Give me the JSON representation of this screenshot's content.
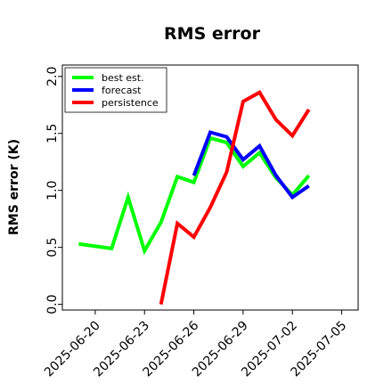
{
  "chart_data": {
    "type": "line",
    "title": "RMS error",
    "xlabel": "",
    "ylabel": "RMS error (K)",
    "xlim": [
      "2025-06-18",
      "2025-07-06"
    ],
    "ylim": [
      -0.05,
      2.1
    ],
    "yticks": [
      "0.0",
      "0.5",
      "1.0",
      "1.5",
      "2.0"
    ],
    "xticks": [
      {
        "date": "2025-06-20",
        "label": "2025-06-20",
        "color": "#000000"
      },
      {
        "date": "2025-06-23",
        "label": "2025-06-23",
        "color": "#000000"
      },
      {
        "date": "2025-06-26",
        "label": "2025-06-26",
        "color": "#2a8c2a"
      },
      {
        "date": "2025-06-29",
        "label": "2025-06-29",
        "color": "#000000"
      },
      {
        "date": "2025-07-02",
        "label": "2025-07-02",
        "color": "#000000"
      },
      {
        "date": "2025-07-05",
        "label": "2025-07-05",
        "color": "#000000"
      }
    ],
    "legend": {
      "position": "top-left"
    },
    "series": [
      {
        "name": "best est.",
        "color": "#00ff00",
        "x": [
          "2025-06-19",
          "2025-06-20",
          "2025-06-21",
          "2025-06-22",
          "2025-06-23",
          "2025-06-24",
          "2025-06-25",
          "2025-06-26",
          "2025-06-27",
          "2025-06-28",
          "2025-06-29",
          "2025-06-30",
          "2025-07-01",
          "2025-07-02",
          "2025-07-03"
        ],
        "y": [
          0.53,
          0.51,
          0.49,
          0.94,
          0.47,
          0.72,
          1.12,
          1.07,
          1.46,
          1.42,
          1.21,
          1.33,
          1.11,
          0.96,
          1.13
        ]
      },
      {
        "name": "forecast",
        "color": "#0000ff",
        "x": [
          "2025-06-26",
          "2025-06-27",
          "2025-06-28",
          "2025-06-29",
          "2025-06-30",
          "2025-07-01",
          "2025-07-02",
          "2025-07-03"
        ],
        "y": [
          1.13,
          1.51,
          1.47,
          1.27,
          1.39,
          1.13,
          0.94,
          1.04
        ]
      },
      {
        "name": "persistence",
        "color": "#ff0000",
        "x": [
          "2025-06-24",
          "2025-06-25",
          "2025-06-26",
          "2025-06-27",
          "2025-06-28",
          "2025-06-29",
          "2025-06-30",
          "2025-07-01",
          "2025-07-02",
          "2025-07-03"
        ],
        "y": [
          0.0,
          0.71,
          0.59,
          0.85,
          1.16,
          1.78,
          1.86,
          1.62,
          1.48,
          1.71
        ]
      }
    ]
  }
}
